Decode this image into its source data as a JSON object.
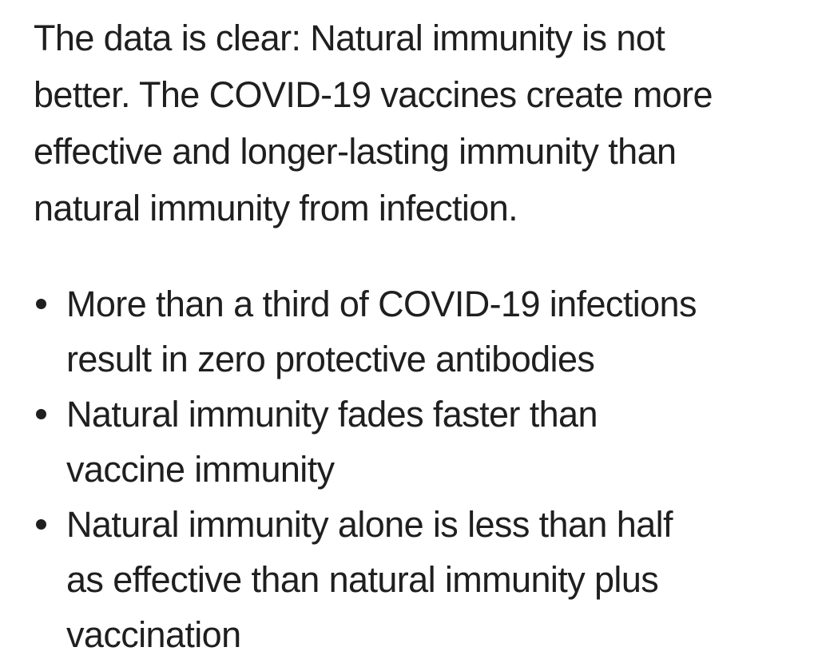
{
  "intro": {
    "line1": "The data is clear: Natural immunity is not",
    "line2": "better. The COVID-19 vaccines create more",
    "line3": "effective and longer-lasting immunity than",
    "line4": "natural immunity from infection."
  },
  "bullets": [
    {
      "line1": "More than a third of COVID-19 infections",
      "line2": "result in zero protective antibodies"
    },
    {
      "line1": "Natural immunity fades faster than",
      "line2": "vaccine immunity"
    },
    {
      "line1": "Natural immunity alone is less than half",
      "line2": "as effective than natural immunity plus",
      "line3": "vaccination"
    }
  ]
}
